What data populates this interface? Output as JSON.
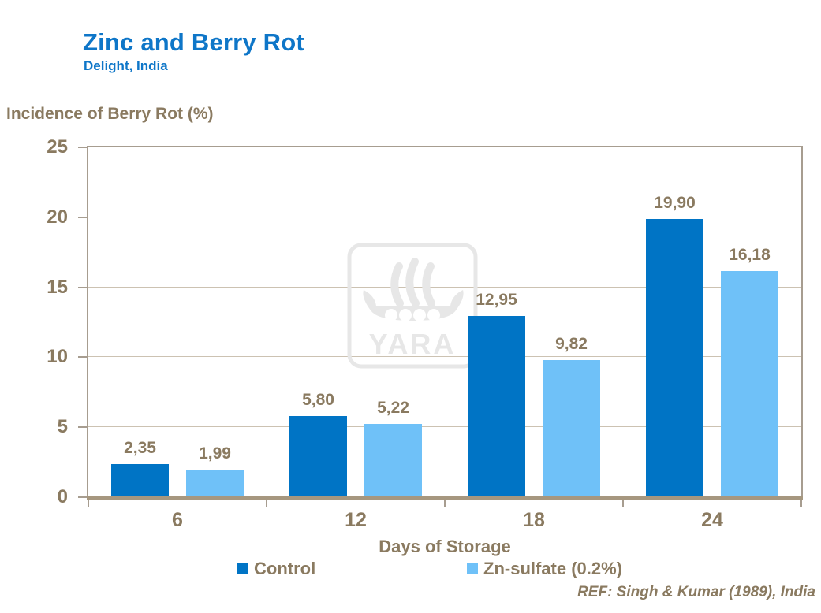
{
  "header": {
    "title": "Zinc and Berry Rot",
    "subtitle": "Delight, India"
  },
  "chart_data": {
    "type": "bar",
    "title": "Zinc and Berry Rot",
    "subtitle": "Delight, India",
    "categories": [
      "6",
      "12",
      "18",
      "24"
    ],
    "series": [
      {
        "name": "Control",
        "values": [
          2.35,
          5.8,
          12.95,
          19.9
        ],
        "labels": [
          "2,35",
          "5,80",
          "12,95",
          "19,90"
        ],
        "color": "#0074C5"
      },
      {
        "name": "Zn-sulfate (0.2%)",
        "values": [
          1.99,
          5.22,
          9.82,
          16.18
        ],
        "labels": [
          "1,99",
          "5,22",
          "9,82",
          "16,18"
        ],
        "color": "#6FC1F8"
      }
    ],
    "xlabel": "Days of Storage",
    "ylabel": "Incidence of Berry Rot (%)",
    "ylim": [
      0,
      25
    ],
    "yticks": [
      0,
      5,
      10,
      15,
      20,
      25
    ],
    "grid": true,
    "legend_position": "bottom"
  },
  "footer": {
    "reference": "REF: Singh & Kumar (1989), India"
  },
  "watermark": {
    "text": "YARA"
  },
  "colors": {
    "title_blue": "#0E76C8",
    "text_brown": "#8A7A60",
    "bar_dark_blue": "#0074C5",
    "bar_light_blue": "#6FC1F8",
    "plot_border": "#A79D90",
    "axis_line": "#A6977F",
    "gridline": "#CCC2B2",
    "watermark_gray": "#E7E7E7"
  }
}
